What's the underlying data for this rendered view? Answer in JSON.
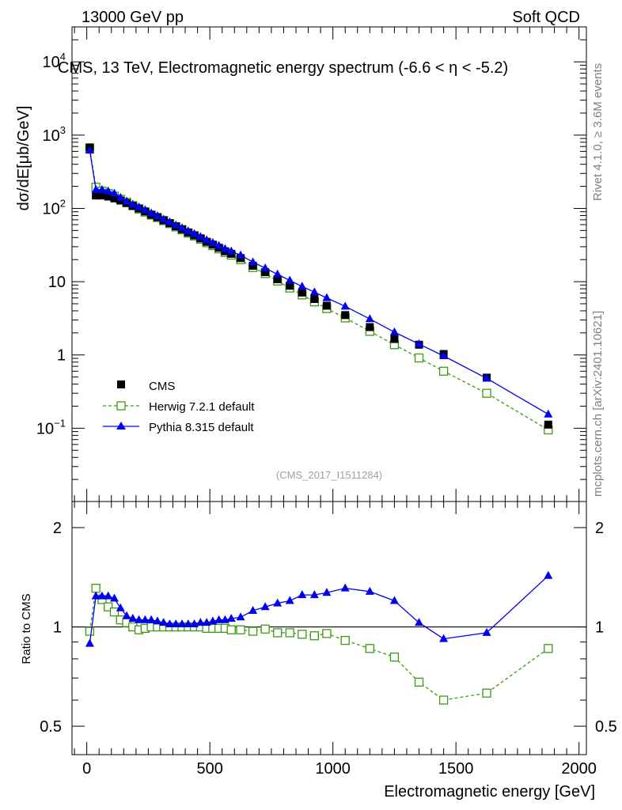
{
  "header": {
    "left": "13000 GeV pp",
    "right": "Soft QCD"
  },
  "side_text": {
    "upper": "Rivet 4.1.0, ≥ 3.6M events",
    "lower": "mcplots.cern.ch [arXiv:2401.10621]"
  },
  "analysis_tag": "(CMS_2017_I1511284)",
  "colors": {
    "cms": "#000000",
    "herwig": "#3a9a10",
    "pythia": "#0000ee"
  },
  "chart_data": [
    {
      "type": "line",
      "panel": "main",
      "title": "CMS, 13 TeV, Electromagnetic energy spectrum (-6.6 < η < -5.2)",
      "xlabel": "Electromagnetic energy [GeV]",
      "ylabel": "dσ/dE[μb/GeV]",
      "yscale": "log",
      "xlim": [
        -60,
        2030
      ],
      "ylim": [
        0.01,
        30000
      ],
      "y_ticks": [
        {
          "value": 10000,
          "label": "10^4"
        },
        {
          "value": 1000,
          "label": "10^3"
        },
        {
          "value": 100,
          "label": "10^2"
        },
        {
          "value": 10,
          "label": "10"
        },
        {
          "value": 1,
          "label": "1"
        },
        {
          "value": 0.1,
          "label": "10^-1"
        }
      ],
      "x": [
        12,
        37,
        62,
        87,
        112,
        137,
        162,
        187,
        212,
        237,
        262,
        287,
        312,
        337,
        362,
        387,
        412,
        437,
        462,
        487,
        512,
        537,
        562,
        587,
        625,
        675,
        725,
        775,
        825,
        875,
        925,
        975,
        1050,
        1150,
        1250,
        1350,
        1450,
        1625,
        1875
      ],
      "series": [
        {
          "name": "CMS",
          "marker": "square",
          "values": [
            680,
            150,
            150,
            145,
            137,
            128,
            118,
            108,
            100,
            91,
            82,
            76,
            69,
            63,
            57,
            52,
            47,
            43,
            39,
            35,
            32,
            29,
            26,
            24,
            21,
            16.5,
            13.5,
            10.8,
            8.8,
            7.1,
            5.8,
            4.7,
            3.5,
            2.4,
            1.65,
            1.38,
            1.03,
            0.49,
            0.112
          ]
        },
        {
          "name": "Herwig 7.2.1 default",
          "marker": "open-square",
          "line": "dashed",
          "values": [
            660,
            195,
            172,
            160,
            147,
            133,
            121,
            109,
            98,
            89,
            81,
            75,
            68,
            62,
            56,
            51,
            46,
            42,
            38,
            34,
            31,
            28,
            25,
            23,
            20,
            15.6,
            12.9,
            10.2,
            8.2,
            6.6,
            5.3,
            4.3,
            3.2,
            2.1,
            1.38,
            0.91,
            0.6,
            0.3,
            0.095
          ]
        },
        {
          "name": "Pythia 8.315 default",
          "marker": "triangle",
          "line": "solid",
          "values": [
            620,
            180,
            180,
            172,
            160,
            140,
            125,
            113,
            104,
            95,
            86,
            79,
            71,
            65,
            59,
            54,
            49,
            45,
            41,
            37,
            34,
            31,
            28,
            26,
            23,
            18.5,
            15.3,
            12.6,
            10.4,
            8.6,
            7.2,
            6.0,
            4.6,
            3.1,
            2.05,
            1.41,
            0.97,
            0.48,
            0.155
          ]
        }
      ]
    },
    {
      "type": "line",
      "panel": "ratio",
      "xlabel": "Electromagnetic energy [GeV]",
      "ylabel": "Ratio to CMS",
      "yscale": "log",
      "xlim": [
        -60,
        2030
      ],
      "ylim": [
        0.41,
        2.4
      ],
      "y_ticks": [
        {
          "value": 0.5,
          "label": "0.5"
        },
        {
          "value": 1,
          "label": "1"
        },
        {
          "value": 2,
          "label": "2"
        }
      ],
      "x_ticks": [
        0,
        500,
        1000,
        1500,
        2000
      ],
      "reference": 1,
      "x": [
        12,
        37,
        62,
        87,
        112,
        137,
        162,
        187,
        212,
        237,
        262,
        287,
        312,
        337,
        362,
        387,
        412,
        437,
        462,
        487,
        512,
        537,
        562,
        587,
        625,
        675,
        725,
        775,
        825,
        875,
        925,
        975,
        1050,
        1150,
        1250,
        1350,
        1450,
        1625,
        1875
      ],
      "series": [
        {
          "name": "Herwig 7.2.1 default",
          "marker": "open-square",
          "line": "dashed",
          "values": [
            0.97,
            1.31,
            1.21,
            1.15,
            1.11,
            1.05,
            1.03,
            1.0,
            0.98,
            0.99,
            1.0,
            1.0,
            1.0,
            1.0,
            1.0,
            1.0,
            1.0,
            1.0,
            1.0,
            0.99,
            0.99,
            0.99,
            0.99,
            0.98,
            0.98,
            0.97,
            0.985,
            0.96,
            0.96,
            0.95,
            0.94,
            0.955,
            0.91,
            0.86,
            0.81,
            0.68,
            0.6,
            0.63,
            0.86
          ]
        },
        {
          "name": "Pythia 8.315 default",
          "marker": "triangle",
          "line": "solid",
          "values": [
            0.89,
            1.24,
            1.24,
            1.24,
            1.22,
            1.14,
            1.08,
            1.06,
            1.05,
            1.05,
            1.05,
            1.04,
            1.03,
            1.02,
            1.02,
            1.02,
            1.02,
            1.02,
            1.03,
            1.03,
            1.04,
            1.05,
            1.05,
            1.06,
            1.07,
            1.12,
            1.15,
            1.18,
            1.2,
            1.25,
            1.25,
            1.27,
            1.31,
            1.28,
            1.2,
            1.03,
            0.92,
            0.96,
            1.43
          ]
        }
      ]
    }
  ]
}
